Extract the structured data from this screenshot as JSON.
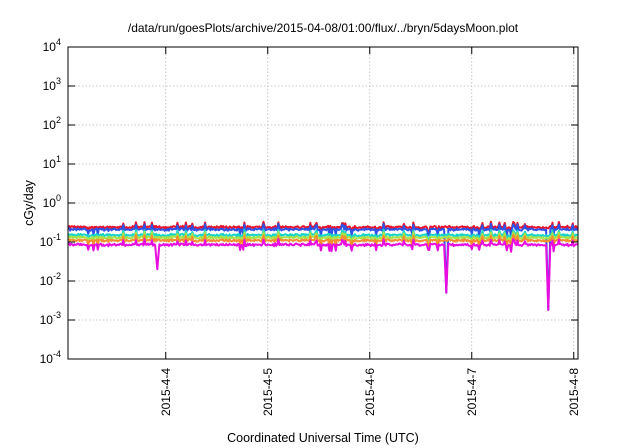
{
  "chart_data": {
    "type": "line",
    "title": "/data/run/goesPlots/archive/2015-04-08/01:00/flux/../bryn/5daysMoon.plot",
    "xlabel": "Coordinated Universal Time (UTC)",
    "ylabel": "cGy/day",
    "yscale": "log",
    "ylim": [
      0.0001,
      10000
    ],
    "y_ticks": [
      {
        "base": "10",
        "exp": "-4"
      },
      {
        "base": "10",
        "exp": "-3"
      },
      {
        "base": "10",
        "exp": "-2"
      },
      {
        "base": "10",
        "exp": "-1"
      },
      {
        "base": "10",
        "exp": "0"
      },
      {
        "base": "10",
        "exp": "1"
      },
      {
        "base": "10",
        "exp": "2"
      },
      {
        "base": "10",
        "exp": "3"
      },
      {
        "base": "10",
        "exp": "4"
      }
    ],
    "xlim": [
      "2015-04-03 01:00",
      "2015-04-08 01:00"
    ],
    "x_ticks": [
      "2015-4-4",
      "2015-4-5",
      "2015-4-6",
      "2015-4-7",
      "2015-4-8"
    ],
    "grid": true,
    "series": [
      {
        "color": "#e8132b",
        "level": 0.24,
        "base": 0.24,
        "dips": []
      },
      {
        "color": "#2f51e6",
        "level": 0.21,
        "base": 0.21,
        "dips": [
          [
            "2015-04-06 18:00",
            0.005
          ],
          [
            "2015-04-07 18:00",
            0.0018
          ]
        ]
      },
      {
        "color": "#19d4c6",
        "level": 0.15,
        "base": 0.15,
        "dips": []
      },
      {
        "color": "#a6e34a",
        "level": 0.13,
        "base": 0.13,
        "dips": []
      },
      {
        "color": "#f58f2c",
        "level": 0.11,
        "base": 0.11,
        "dips": []
      },
      {
        "color": "#e80ee0",
        "level": 0.085,
        "base": 0.085,
        "dips": [
          [
            "2015-04-03 22:00",
            0.02
          ],
          [
            "2015-04-06 18:00",
            0.005
          ],
          [
            "2015-04-07 18:00",
            0.0018
          ]
        ]
      }
    ]
  }
}
